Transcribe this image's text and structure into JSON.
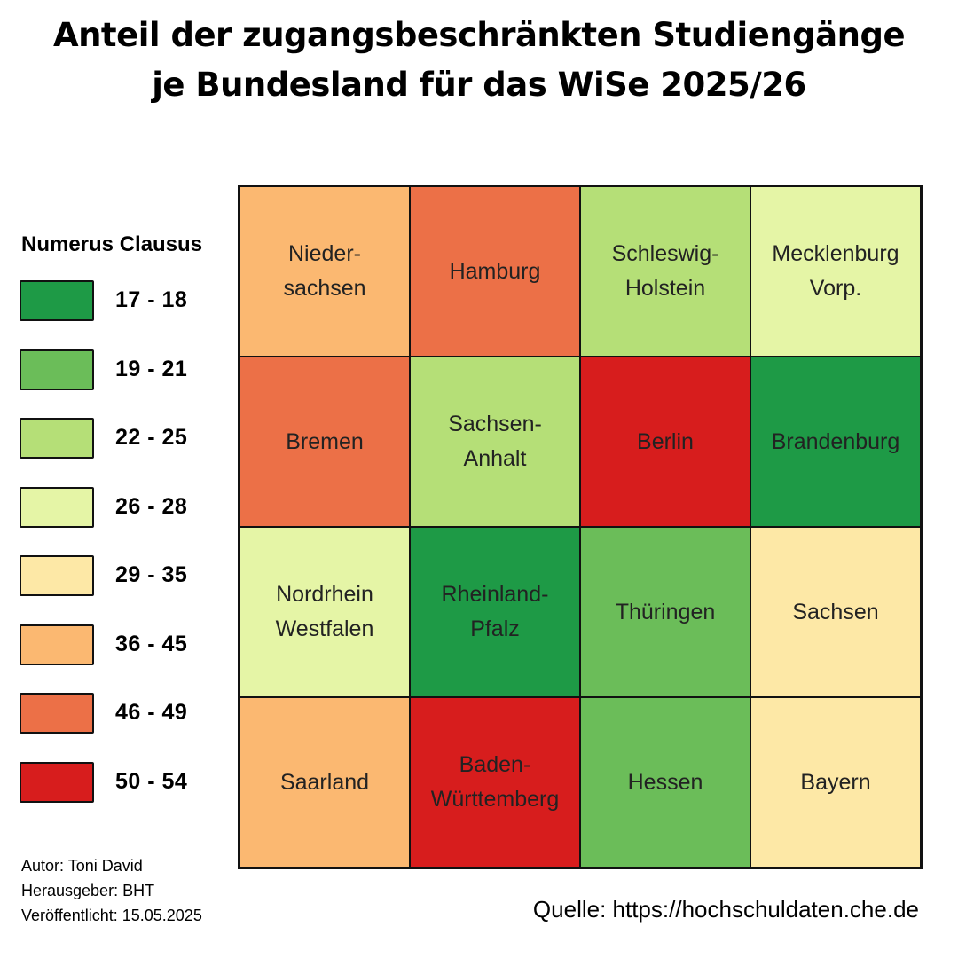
{
  "title": {
    "line1": "Anteil der zugangsbeschränkten Studiengänge",
    "line2": "je Bundesland für das WiSe 2025/26"
  },
  "legend": {
    "title": "Numerus Clausus",
    "items": [
      {
        "label": "17 - 18",
        "color": "#1e9a46"
      },
      {
        "label": "19 - 21",
        "color": "#6bbd59"
      },
      {
        "label": "22 - 25",
        "color": "#b5df77"
      },
      {
        "label": "26 - 28",
        "color": "#e5f5a6"
      },
      {
        "label": "29 - 35",
        "color": "#fde8a6"
      },
      {
        "label": "36 - 45",
        "color": "#fbb871"
      },
      {
        "label": "46 - 49",
        "color": "#ec7047"
      },
      {
        "label": "50 - 54",
        "color": "#d71d1d"
      }
    ]
  },
  "chart_data": {
    "type": "heatmap",
    "title": "Anteil der zugangsbeschränkten Studiengänge je Bundesland für das WiSe 2025/26",
    "rows": 4,
    "cols": 4,
    "legend_title": "Numerus Clausus",
    "legend_placement": "left",
    "cells": [
      {
        "row": 0,
        "col": 0,
        "label": "Nieder-\nsachsen",
        "range": "36 - 45",
        "color": "#fbb871"
      },
      {
        "row": 0,
        "col": 1,
        "label": "Hamburg",
        "range": "46 - 49",
        "color": "#ec7047"
      },
      {
        "row": 0,
        "col": 2,
        "label": "Schleswig-\nHolstein",
        "range": "22 - 25",
        "color": "#b5df77"
      },
      {
        "row": 0,
        "col": 3,
        "label": "Mecklenburg\nVorp.",
        "range": "26 - 28",
        "color": "#e5f5a6"
      },
      {
        "row": 1,
        "col": 0,
        "label": "Bremen",
        "range": "46 - 49",
        "color": "#ec7047"
      },
      {
        "row": 1,
        "col": 1,
        "label": "Sachsen-\nAnhalt",
        "range": "22 - 25",
        "color": "#b5df77"
      },
      {
        "row": 1,
        "col": 2,
        "label": "Berlin",
        "range": "50 - 54",
        "color": "#d71d1d"
      },
      {
        "row": 1,
        "col": 3,
        "label": "Brandenburg",
        "range": "17 - 18",
        "color": "#1e9a46"
      },
      {
        "row": 2,
        "col": 0,
        "label": "Nordrhein\nWestfalen",
        "range": "26 - 28",
        "color": "#e5f5a6"
      },
      {
        "row": 2,
        "col": 1,
        "label": "Rheinland-\nPfalz",
        "range": "17 - 18",
        "color": "#1e9a46"
      },
      {
        "row": 2,
        "col": 2,
        "label": "Thüringen",
        "range": "19 - 21",
        "color": "#6bbd59"
      },
      {
        "row": 2,
        "col": 3,
        "label": "Sachsen",
        "range": "29 - 35",
        "color": "#fde8a6"
      },
      {
        "row": 3,
        "col": 0,
        "label": "Saarland",
        "range": "36 - 45",
        "color": "#fbb871"
      },
      {
        "row": 3,
        "col": 1,
        "label": "Baden-\nWürttemberg",
        "range": "50 - 54",
        "color": "#d71d1d"
      },
      {
        "row": 3,
        "col": 2,
        "label": "Hessen",
        "range": "19 - 21",
        "color": "#6bbd59"
      },
      {
        "row": 3,
        "col": 3,
        "label": "Bayern",
        "range": "29 - 35",
        "color": "#fde8a6"
      }
    ]
  },
  "credits": {
    "author": "Autor: Toni David",
    "publisher": "Herausgeber: BHT",
    "published": "Veröffentlicht: 15.05.2025"
  },
  "source": "Quelle: https://hochschuldaten.che.de"
}
